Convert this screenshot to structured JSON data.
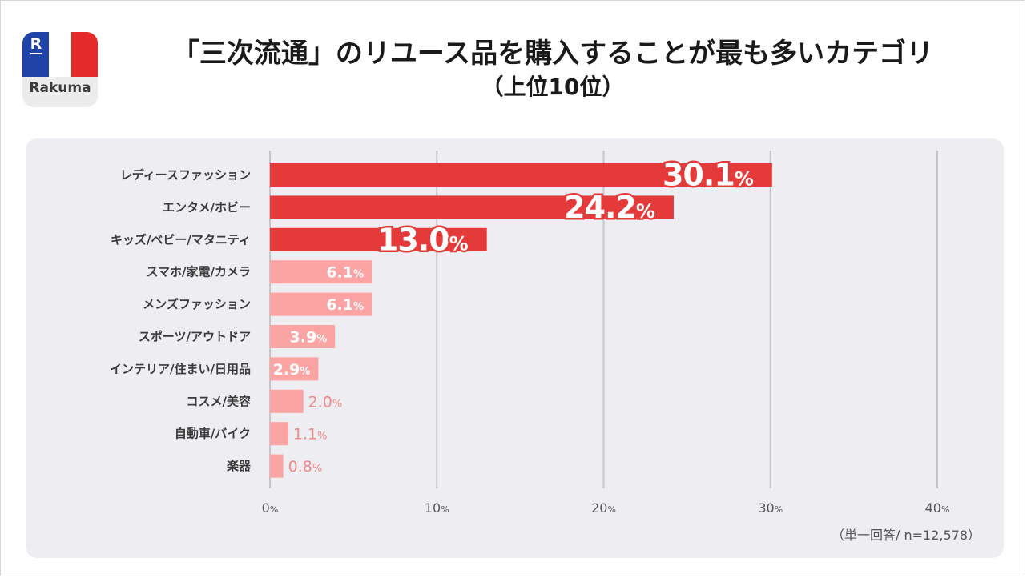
{
  "logo": {
    "brand": "Rakuma",
    "mark": "R"
  },
  "header": {
    "title": "「三次流通」のリユース品を購入することが最も多いカテゴリ",
    "subtitle": "（上位10位）"
  },
  "note": "（単一回答/ n=12,578）",
  "colors": {
    "top": "#e53a3a",
    "rest": "#fca3a3",
    "panel": "#eeedf1",
    "grid": "#c7c5cc"
  },
  "chart_data": {
    "type": "bar",
    "orientation": "horizontal",
    "categories": [
      "レディースファッション",
      "エンタメ/ホビー",
      "キッズ/ベビー/マタニティ",
      "スマホ/家電/カメラ",
      "メンズファッション",
      "スポーツ/アウトドア",
      "インテリア/住まい/日用品",
      "コスメ/美容",
      "自動車/バイク",
      "楽器"
    ],
    "values": [
      30.1,
      24.2,
      13.0,
      6.1,
      6.1,
      3.9,
      2.9,
      2.0,
      1.1,
      0.8
    ],
    "value_labels": [
      "30.1",
      "24.2",
      "13.0",
      "6.1",
      "6.1",
      "3.9",
      "2.9",
      "2.0",
      "1.1",
      "0.8"
    ],
    "unit": "%",
    "xlim": [
      0,
      40
    ],
    "xticks": [
      0,
      10,
      20,
      30,
      40
    ],
    "xtick_labels": [
      "0",
      "10",
      "20",
      "30",
      "40"
    ],
    "grid": true,
    "highlight_top": 3
  }
}
